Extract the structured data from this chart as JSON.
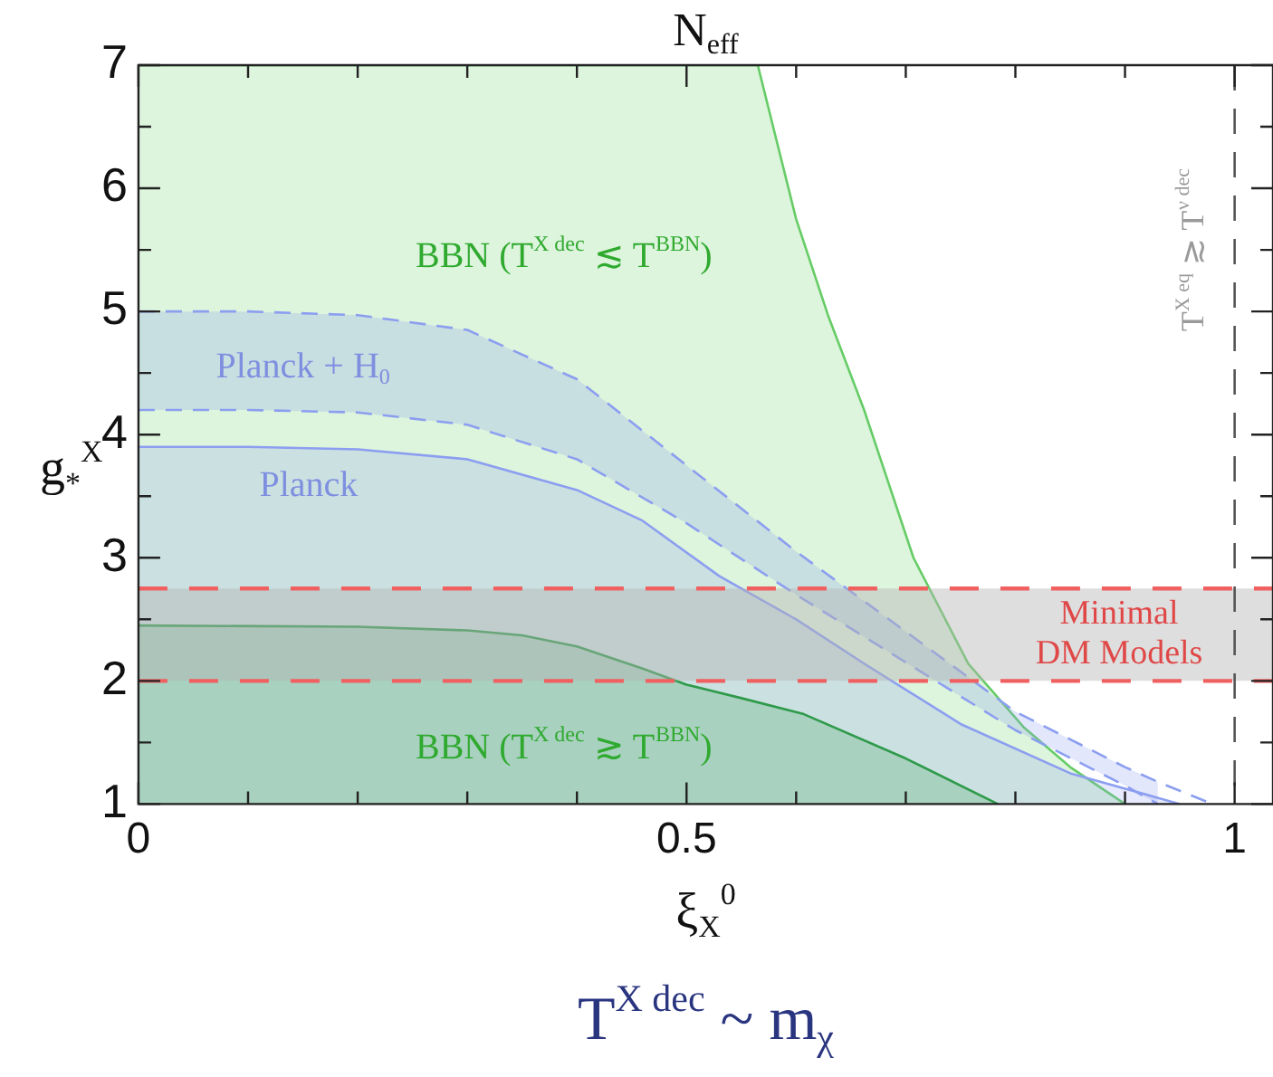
{
  "chart_data": {
    "type": "area",
    "title": "N$_{eff}$",
    "xlabel": "ξ$_{X}$$^{0}$",
    "ylabel": "g$_{*}$$^{X}$",
    "xlim": [
      0,
      1.035
    ],
    "xticks": [
      0,
      {
        "value": 0.1,
        "label": null
      },
      {
        "value": 0.2,
        "label": null
      },
      {
        "value": 0.3,
        "label": null
      },
      {
        "value": 0.4,
        "label": null
      },
      0.5,
      {
        "value": 0.6,
        "label": null
      },
      {
        "value": 0.7,
        "label": null
      },
      {
        "value": 0.8,
        "label": null
      },
      {
        "value": 0.9,
        "label": null
      },
      1
    ],
    "ylim": [
      1,
      7
    ],
    "yticks": [
      1,
      {
        "value": 1.5,
        "label": null
      },
      2,
      {
        "value": 2.5,
        "label": null
      },
      3,
      {
        "value": 3.5,
        "label": null
      },
      4,
      {
        "value": 4.5,
        "label": null
      },
      5,
      {
        "value": 5.5,
        "label": null
      },
      6,
      {
        "value": 6.5,
        "label": null
      },
      7
    ],
    "grid": false,
    "legend": false,
    "series": [
      {
        "name": "BBN (T$^{X dec}$ ≲ T$^{BBN}$)",
        "color": "#66cc66",
        "x": [
          0,
          0.565,
          0.6,
          0.629,
          0.662,
          0.707,
          0.757,
          0.808,
          0.85,
          0.9
        ],
        "values": [
          7,
          7,
          5.75,
          4.97,
          4.2,
          3.0,
          2.14,
          1.62,
          1.3,
          1.0
        ]
      },
      {
        "name": "Planck",
        "color": "#8c9ef0",
        "x": [
          0,
          0.1,
          0.2,
          0.3,
          0.4,
          0.46,
          0.53,
          0.6,
          0.662,
          0.75,
          0.85,
          0.95
        ],
        "values": [
          3.9,
          3.9,
          3.88,
          3.8,
          3.55,
          3.3,
          2.85,
          2.5,
          2.14,
          1.65,
          1.25,
          1.0
        ]
      },
      {
        "name": "Planck + H$_{0}$",
        "type": "line",
        "line_style": "dashed",
        "color": "#8c9ef0",
        "x": [
          0,
          0.1,
          0.2,
          0.3,
          0.4,
          0.5,
          0.6,
          0.7,
          0.8,
          0.9,
          0.93,
          0.98
        ],
        "values": [
          5.0,
          5.0,
          4.97,
          4.85,
          4.45,
          3.75,
          3.05,
          2.4,
          1.75,
          1.3,
          1.18,
          1.0
        ]
      },
      {
        "type": "line",
        "line_style": "dashed",
        "color": "#8c9ef0",
        "x": [
          0,
          0.1,
          0.2,
          0.3,
          0.4,
          0.5,
          0.6,
          0.7,
          0.8,
          0.9,
          0.93
        ],
        "values": [
          4.2,
          4.2,
          4.18,
          4.08,
          3.8,
          3.28,
          2.7,
          2.15,
          1.6,
          1.15,
          1.0
        ]
      },
      {
        "name": "BBN (T$^{X dec}$ ≳ T$^{BBN}$)",
        "color": "#2e9a4a",
        "x": [
          0,
          0.2,
          0.3,
          0.35,
          0.4,
          0.46,
          0.5,
          0.55,
          0.607,
          0.7,
          0.784
        ],
        "values": [
          2.45,
          2.44,
          2.41,
          2.37,
          2.28,
          2.1,
          1.97,
          1.86,
          1.73,
          1.37,
          1.0
        ]
      }
    ],
    "bands": [
      {
        "axis": "y",
        "from": 2,
        "to": 2.75,
        "color": "#b4b4b4",
        "label": "Minimal\nDM Models"
      }
    ],
    "ref_lines": [
      {
        "axis": "y",
        "value": 2,
        "color": "#f06060",
        "line_style": "dashed"
      },
      {
        "axis": "y",
        "value": 2.75,
        "color": "#f06060",
        "line_style": "dashed"
      },
      {
        "axis": "x",
        "value": 1,
        "color": "#555555",
        "line_style": "dashed",
        "label": "T$^{X eq}$ ≳ T$^{ν dec}$"
      }
    ],
    "annotations": [
      "T$^{X dec}$ ~ m$_{χ}$"
    ]
  }
}
